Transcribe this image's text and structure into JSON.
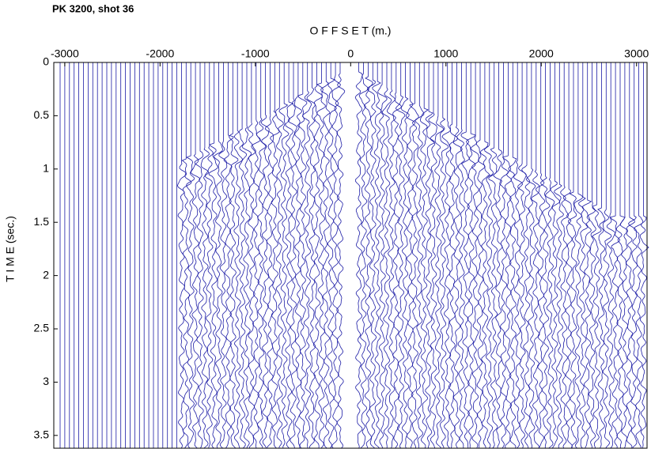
{
  "chart_data": {
    "type": "seismic-gather",
    "title": "PK 3200, shot 36",
    "x_label": "O F F S E T (m.)",
    "y_label": "T I M E (sec.)",
    "xlim": [
      -3115,
      3110
    ],
    "xticks": [
      -3000,
      -2000,
      -1000,
      0,
      1000,
      2000,
      3000
    ],
    "ylim": [
      0,
      3.62
    ],
    "yticks": [
      0,
      0.5,
      1,
      1.5,
      2,
      2.5,
      3,
      3.5
    ],
    "y_inverted": true,
    "color": "#1c1ca6"
  }
}
